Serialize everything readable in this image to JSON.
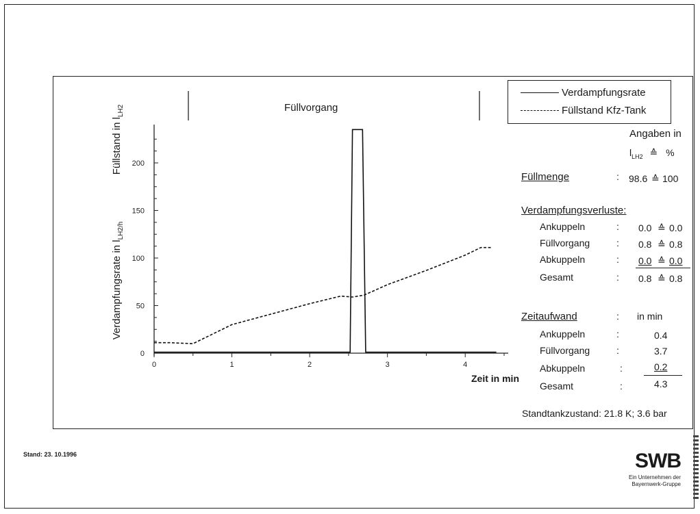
{
  "chart_data": {
    "type": "line",
    "xlabel": "Zeit in min",
    "ylabel_outer": "Verdampfungsrate in l LH2/h",
    "ylabel_inner": "Füllstand in l LH2",
    "xlim": [
      0,
      4.5
    ],
    "ylim": [
      0,
      240
    ],
    "x_ticks": [
      0,
      1,
      2,
      3,
      4
    ],
    "y_ticks": [
      0,
      50,
      100,
      150,
      200
    ],
    "phase_label": "Füllvorgang",
    "phase_range": [
      0.45,
      4.2
    ],
    "series": [
      {
        "name": "Verdampfungsrate",
        "style": "solid",
        "x": [
          0,
          2.5,
          2.52,
          2.55,
          2.68,
          2.72,
          2.75,
          4.4
        ],
        "y": [
          1,
          1,
          1,
          235,
          235,
          1,
          1,
          1
        ]
      },
      {
        "name": "Füllstand Kfz-Tank",
        "style": "dashed",
        "x": [
          0,
          0.2,
          0.5,
          1.0,
          1.5,
          2.0,
          2.4,
          2.55,
          2.7,
          3.0,
          3.5,
          4.0,
          4.2,
          4.35
        ],
        "y": [
          11,
          11,
          10,
          30,
          41,
          52,
          60,
          59,
          61,
          72,
          87,
          103,
          111,
          111
        ]
      }
    ]
  },
  "header": {
    "phase_label": "Füllvorgang"
  },
  "axes": {
    "ytitle_outer": "Verdampfungsrate in l",
    "ytitle_outer_unit": "LH2/h",
    "ytitle_inner": "Füllstand in l",
    "ytitle_inner_unit": "LH2",
    "xtitle": "Zeit in min",
    "y_tick_labels": [
      "0",
      "50",
      "100",
      "150",
      "200"
    ],
    "x_tick_labels": [
      "0",
      "1",
      "2",
      "3",
      "4"
    ]
  },
  "legend": {
    "items": [
      {
        "label": "Verdampfungsrate",
        "style": "solid"
      },
      {
        "label": "Füllstand Kfz-Tank",
        "style": "dashed"
      }
    ]
  },
  "info": {
    "angaben": "Angaben in",
    "unit_l": "l",
    "unit_sub": "LH2",
    "unit_eq": "≙",
    "unit_pct": "%",
    "fuellmenge_label": "Füllmenge",
    "fuellmenge_colon": ":",
    "fuellmenge_value": "98.6",
    "fuellmenge_eq": "≙",
    "fuellmenge_pct": "100",
    "verluste_title": "Verdampfungsverluste:",
    "verluste_rows": [
      {
        "label": "Ankuppeln",
        "colon": ":",
        "value": "0.0",
        "eq": "≙",
        "pct": "0.0"
      },
      {
        "label": "Füllvorgang",
        "colon": ":",
        "value": "0.8",
        "eq": "≙",
        "pct": "0.8"
      },
      {
        "label": "Abkuppeln",
        "colon": ":",
        "value": "0.0",
        "eq": "≙",
        "pct": "0.0"
      },
      {
        "label": "Gesamt",
        "colon": ":",
        "value": "0.8",
        "eq": "≙",
        "pct": "0.8"
      }
    ],
    "zeit_title": "Zeitaufwand",
    "zeit_colon": ":",
    "zeit_unit": "in min",
    "zeit_rows": [
      {
        "label": "Ankuppeln",
        "colon": ":",
        "value": "0.4"
      },
      {
        "label": "Füllvorgang",
        "colon": ":",
        "value": "3.7"
      },
      {
        "label": "Abkuppeln",
        "colon": ":",
        "value": "0.2"
      },
      {
        "label": "Gesamt",
        "colon": ":",
        "value": "4.3"
      }
    ],
    "standtank": "Standtankzustand: 21.8 K; 3.6 bar"
  },
  "footer": {
    "stand": "Stand: 23. 10.1996",
    "logo": "SWB",
    "logo_sub_1": "Ein Unternehmen der",
    "logo_sub_2": "Bayernwerk-Gruppe"
  }
}
